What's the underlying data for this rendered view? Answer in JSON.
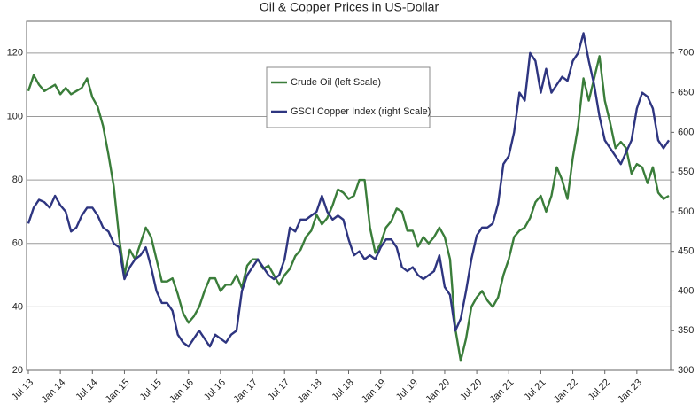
{
  "chart_data": {
    "type": "line",
    "title": "Oil & Copper Prices in US-Dollar",
    "categories": [
      "Jul 13",
      null,
      null,
      null,
      null,
      null,
      "Jan 14",
      null,
      null,
      null,
      null,
      null,
      "Jul 14",
      null,
      null,
      null,
      null,
      null,
      "Jan 15",
      null,
      null,
      null,
      null,
      null,
      "Jul 15",
      null,
      null,
      null,
      null,
      null,
      "Jan 16",
      null,
      null,
      null,
      null,
      null,
      "Jul 16",
      null,
      null,
      null,
      null,
      null,
      "Jan 17",
      null,
      null,
      null,
      null,
      null,
      "Jul 17",
      null,
      null,
      null,
      null,
      null,
      "Jan 18",
      null,
      null,
      null,
      null,
      null,
      "Jul 18",
      null,
      null,
      null,
      null,
      null,
      "Jan 19",
      null,
      null,
      null,
      null,
      null,
      "Jul 19",
      null,
      null,
      null,
      null,
      null,
      "Jan 20",
      null,
      null,
      null,
      null,
      null,
      "Jul 20",
      null,
      null,
      null,
      null,
      null,
      "Jan 21",
      null,
      null,
      null,
      null,
      null,
      "Jul 21",
      null,
      null,
      null,
      null,
      null,
      "Jan 22",
      null,
      null,
      null,
      null,
      null,
      "Jul 22",
      null,
      null,
      null,
      null,
      null,
      "Jan 23",
      null,
      null,
      null,
      null,
      null,
      null
    ],
    "series": [
      {
        "name": "Crude Oil (left Scale)",
        "color": "#3a7d3a",
        "axis": "y",
        "values": [
          108,
          113,
          110,
          108,
          109,
          110,
          107,
          109,
          107,
          108,
          109,
          112,
          106,
          103,
          97,
          88,
          78,
          62,
          50,
          58,
          55,
          60,
          65,
          62,
          55,
          48,
          48,
          49,
          44,
          38,
          35,
          37,
          40,
          45,
          49,
          49,
          45,
          47,
          47,
          50,
          46,
          53,
          55,
          55,
          52,
          53,
          50,
          47,
          50,
          52,
          56,
          58,
          62,
          64,
          69,
          66,
          68,
          72,
          77,
          76,
          74,
          75,
          80,
          80,
          65,
          57,
          60,
          65,
          67,
          71,
          70,
          64,
          64,
          59,
          62,
          60,
          62,
          65,
          62,
          55,
          33,
          23,
          30,
          40,
          43,
          45,
          42,
          40,
          43,
          50,
          55,
          62,
          64,
          65,
          68,
          73,
          75,
          70,
          75,
          84,
          80,
          74,
          87,
          97,
          112,
          105,
          112,
          119,
          105,
          98,
          90,
          92,
          90,
          82,
          85,
          84,
          79,
          84,
          76,
          74,
          75
        ]
      },
      {
        "name": "GSCI Copper Index (right Scale)",
        "color": "#2e3580",
        "axis": "y2",
        "values": [
          485,
          505,
          515,
          512,
          505,
          520,
          508,
          500,
          475,
          480,
          495,
          505,
          505,
          495,
          480,
          475,
          460,
          455,
          415,
          430,
          440,
          445,
          455,
          430,
          400,
          385,
          385,
          375,
          345,
          335,
          330,
          340,
          350,
          340,
          330,
          345,
          340,
          335,
          345,
          350,
          400,
          420,
          430,
          440,
          430,
          420,
          415,
          420,
          440,
          480,
          475,
          490,
          490,
          495,
          500,
          520,
          500,
          490,
          495,
          490,
          465,
          445,
          450,
          440,
          445,
          440,
          455,
          465,
          465,
          455,
          430,
          425,
          430,
          420,
          415,
          420,
          425,
          445,
          405,
          395,
          350,
          365,
          400,
          440,
          470,
          480,
          480,
          485,
          510,
          560,
          570,
          600,
          650,
          640,
          700,
          690,
          650,
          680,
          650,
          660,
          670,
          665,
          690,
          700,
          725,
          690,
          660,
          620,
          590,
          580,
          570,
          560,
          575,
          590,
          630,
          650,
          645,
          630,
          590,
          580,
          590
        ]
      }
    ],
    "ylim": [
      20,
      130
    ],
    "yticks": [
      20,
      40,
      60,
      80,
      100,
      120
    ],
    "y2lim": [
      300,
      740
    ],
    "y2ticks": [
      300,
      350,
      400,
      450,
      500,
      550,
      600,
      650,
      700
    ],
    "grid": true
  }
}
